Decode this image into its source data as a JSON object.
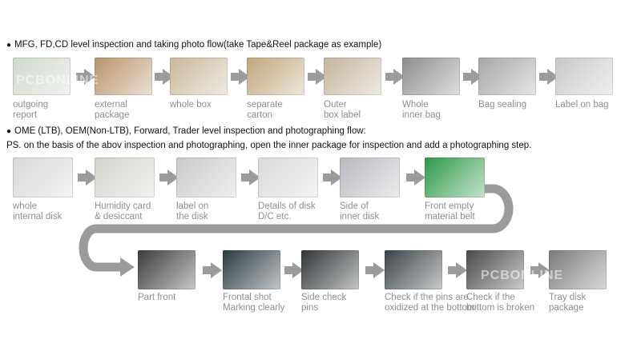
{
  "section1": {
    "header": "MFG, FD,CD level inspection and taking photo flow(take Tape&Reel package as example)",
    "steps": [
      {
        "label": "outgoing\nreport",
        "icon": "report-photo-icon",
        "color": "#cfd8cc"
      },
      {
        "label": "external\npackage",
        "icon": "package-photo-icon",
        "color": "#b8946a"
      },
      {
        "label": "whole box",
        "icon": "box-photo-icon",
        "color": "#c9b89a"
      },
      {
        "label": "separate\ncarton",
        "icon": "carton-photo-icon",
        "color": "#bfa77d"
      },
      {
        "label": "Outer\nbox label",
        "icon": "box-label-photo-icon",
        "color": "#c4b59c"
      },
      {
        "label": "Whole\ninner bag",
        "icon": "inner-bag-photo-icon",
        "color": "#8d8d8d"
      },
      {
        "label": "Bag sealing",
        "icon": "bag-seal-photo-icon",
        "color": "#a6a6a6"
      },
      {
        "label": "Label on bag",
        "icon": "bag-label-photo-icon",
        "color": "#c8c8c8"
      }
    ]
  },
  "section2": {
    "header": "OME (LTB), OEM(Non-LTB), Forward, Trader level inspection and photographing flow:",
    "note": "PS. on the basis of the abov inspection and photographing, open the inner package for inspection and add a photographing step.",
    "row1": [
      {
        "label": "whole\ninternal disk",
        "icon": "disk-photo-icon",
        "color": "#d8d8d8"
      },
      {
        "label": "Humidity card\n& desiccant",
        "icon": "humidity-card-photo-icon",
        "color": "#d4d2cc"
      },
      {
        "label": "label on\nthe disk",
        "icon": "disk-label-photo-icon",
        "color": "#c9c9c9"
      },
      {
        "label": "Details of disk\nD/C etc.",
        "icon": "disk-details-photo-icon",
        "color": "#d9d9d9"
      },
      {
        "label": "Side of\ninner disk",
        "icon": "disk-side-photo-icon",
        "color": "#b9b9c0"
      },
      {
        "label": "Front empty\nmaterial belt",
        "icon": "material-belt-photo-icon",
        "color": "#2e9a48"
      }
    ],
    "row2": [
      {
        "label": "Part front",
        "icon": "part-front-photo-icon",
        "color": "#3b3b3b"
      },
      {
        "label": "Frontal shot\nMarking clearly",
        "icon": "marking-photo-icon",
        "color": "#2a3a40"
      },
      {
        "label": "Side check\npins",
        "icon": "side-pins-photo-icon",
        "color": "#2f3436"
      },
      {
        "label": "Check if the pins are\noxidized at the bottom",
        "icon": "pins-bottom-photo-icon",
        "color": "#3c4347"
      },
      {
        "label": "Check if the\nbottom is broken",
        "icon": "bottom-photo-icon",
        "color": "#4a4a4a"
      },
      {
        "label": "Tray disk\npackage",
        "icon": "tray-photo-icon",
        "color": "#7a7a7a"
      }
    ]
  },
  "watermark": "PCBONLINE",
  "colors": {
    "arrow": "#9b9b9b",
    "label": "#8e8e8e"
  }
}
